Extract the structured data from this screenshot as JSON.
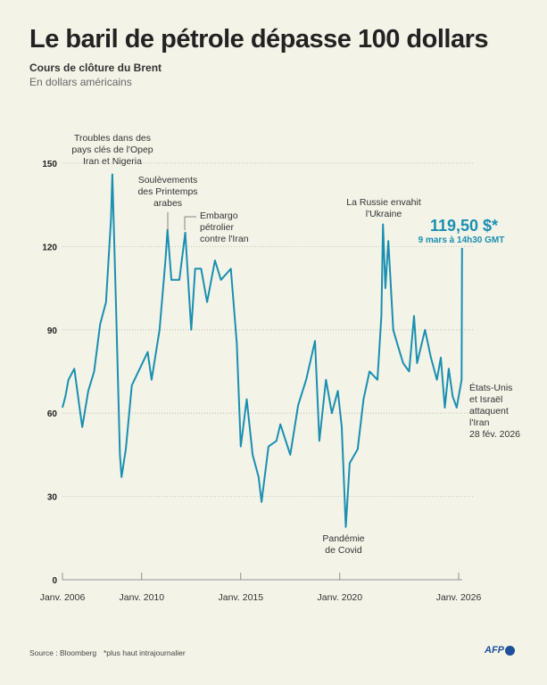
{
  "title": "Le baril de pétrole dépasse 100 dollars",
  "subtitle": "Cours de clôture du Brent",
  "subtitle2": "En dollars américains",
  "footer": {
    "source": "Source : Bloomberg",
    "note": "*plus haut intrajournalier",
    "logo": "AFP"
  },
  "colors": {
    "line": "#1a8fb0",
    "highlight": "#1a8fb0",
    "background": "#f4f3e8",
    "logo": "#1d4f9c"
  },
  "chart_data": {
    "type": "line",
    "title": "",
    "xlabel": "",
    "ylabel": "",
    "ylim": [
      0,
      150
    ],
    "xlim": [
      2006,
      2026.2
    ],
    "grid": "horizontal dotted",
    "yticks": [
      0,
      30,
      60,
      90,
      120,
      150
    ],
    "ytick_labels": [
      "0",
      "30",
      "60",
      "90",
      "120",
      "150"
    ],
    "xticks": [
      2006,
      2010,
      2015,
      2020,
      2026
    ],
    "xtick_labels": [
      "Janv. 2006",
      "Janv. 2010",
      "Janv. 2015",
      "Janv. 2020",
      "Janv. 2026"
    ],
    "series": [
      {
        "x": [
          2006.0,
          2006.15,
          2006.3,
          2006.6,
          2006.9,
          2007.0,
          2007.3,
          2007.6,
          2007.9,
          2008.2,
          2008.45,
          2008.52,
          2008.7,
          2008.9,
          2008.98,
          2009.2,
          2009.5,
          2009.9,
          2010.3,
          2010.5,
          2010.9,
          2011.2,
          2011.3,
          2011.5,
          2011.9,
          2012.2,
          2012.5,
          2012.7,
          2013.0,
          2013.3,
          2013.7,
          2014.0,
          2014.5,
          2014.8,
          2015.0,
          2015.3,
          2015.6,
          2015.9,
          2016.05,
          2016.4,
          2016.8,
          2017.0,
          2017.5,
          2017.9,
          2018.3,
          2018.75,
          2018.97,
          2019.3,
          2019.6,
          2019.9,
          2020.1,
          2020.3,
          2020.5,
          2020.9,
          2021.2,
          2021.5,
          2021.9,
          2022.1,
          2022.18,
          2022.3,
          2022.45,
          2022.7,
          2022.9,
          2023.2,
          2023.5,
          2023.75,
          2023.9,
          2024.3,
          2024.6,
          2024.9,
          2025.1,
          2025.3,
          2025.5,
          2025.7,
          2025.9,
          2026.0,
          2026.15,
          2026.17
        ],
        "values": [
          62,
          66,
          72,
          76,
          60,
          55,
          68,
          75,
          92,
          100,
          130,
          146,
          100,
          45,
          37,
          47,
          70,
          76,
          82,
          72,
          90,
          115,
          126,
          108,
          108,
          125,
          90,
          112,
          112,
          100,
          115,
          108,
          112,
          85,
          48,
          65,
          45,
          37,
          28,
          48,
          50,
          56,
          45,
          63,
          72,
          86,
          50,
          72,
          60,
          68,
          55,
          19,
          42,
          47,
          65,
          75,
          72,
          95,
          128,
          105,
          122,
          90,
          85,
          78,
          75,
          95,
          78,
          90,
          80,
          72,
          80,
          62,
          76,
          66,
          62,
          66,
          72,
          119.5
        ]
      }
    ],
    "annotations": [
      {
        "lines": [
          "Troubles dans des",
          "pays clés de l'Opep",
          "Iran et Nigeria"
        ]
      },
      {
        "lines": [
          "Soulèvements",
          "des Printemps",
          "arabes"
        ]
      },
      {
        "lines": [
          "Embargo",
          "pétrolier",
          "contre l'Iran"
        ]
      },
      {
        "lines": [
          "La Russie envahit",
          "l'Ukraine"
        ]
      },
      {
        "lines": [
          "Pandémie",
          "de Covid"
        ]
      },
      {
        "lines": [
          "États-Unis",
          "et Israël",
          "attaquent",
          "l'Iran",
          "28 fév. 2026"
        ]
      }
    ],
    "highlight": {
      "value": "119,50 $*",
      "caption": "9 mars à 14h30 GMT"
    }
  }
}
